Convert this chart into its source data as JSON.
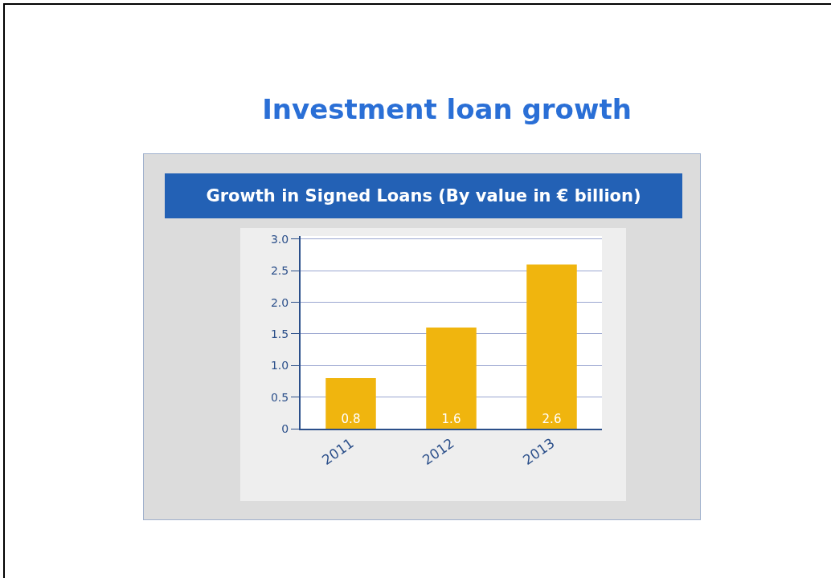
{
  "chart_data": {
    "type": "bar",
    "title": "Investment loan growth",
    "subtitle": "Growth in Signed Loans (By value in € billion)",
    "categories": [
      "2011",
      "2012",
      "2013"
    ],
    "values": [
      0.8,
      1.6,
      2.6
    ],
    "color": "#f0b50e",
    "ylim": [
      0,
      3.05
    ],
    "yticks": [
      0,
      0.5,
      {
        "value": 1,
        "label": "1.0"
      },
      1.5,
      {
        "value": 2,
        "label": "2.0"
      },
      2.5,
      {
        "value": 3,
        "label": "3.0"
      }
    ],
    "grid": "y",
    "data_labels": true
  }
}
